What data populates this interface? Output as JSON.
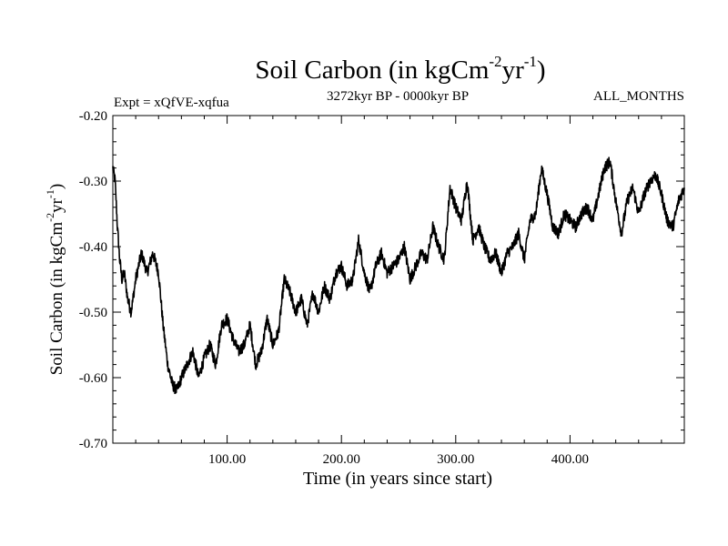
{
  "chart_data": {
    "type": "line",
    "title": {
      "main": "Soil Carbon (in kgCm",
      "sup1": "-2",
      "mid": "yr",
      "sup2": "-1",
      "end": ")"
    },
    "subtitle_left": "Expt = xQfVE-xqfua",
    "subtitle_center": "3272kyr BP - 0000kyr BP",
    "subtitle_right": "ALL_MONTHS",
    "xlabel": "Time (in years since start)",
    "ylabel": {
      "main": "Soil Carbon (in kgCm",
      "sup1": "-2",
      "mid": "yr",
      "sup2": "-1",
      "end": ")"
    },
    "xlim": [
      0,
      500
    ],
    "ylim": [
      -0.7,
      -0.2
    ],
    "xticks": [
      {
        "value": 100,
        "label": "100.00"
      },
      {
        "value": 200,
        "label": "200.00"
      },
      {
        "value": 300,
        "label": "300.00"
      },
      {
        "value": 400,
        "label": "400.00"
      }
    ],
    "yticks": [
      {
        "value": -0.2,
        "label": "-0.20"
      },
      {
        "value": -0.3,
        "label": "-0.30"
      },
      {
        "value": -0.4,
        "label": "-0.40"
      },
      {
        "value": -0.5,
        "label": "-0.50"
      },
      {
        "value": -0.6,
        "label": "-0.60"
      },
      {
        "value": -0.7,
        "label": "-0.70"
      }
    ],
    "series": [
      {
        "name": "Soil Carbon",
        "color": "#000000",
        "x": [
          0,
          2,
          4,
          6,
          8,
          10,
          13,
          16,
          20,
          25,
          30,
          35,
          40,
          44,
          48,
          52,
          56,
          60,
          65,
          70,
          75,
          80,
          85,
          90,
          95,
          100,
          105,
          110,
          115,
          120,
          125,
          130,
          135,
          140,
          145,
          150,
          155,
          160,
          165,
          170,
          175,
          180,
          185,
          190,
          195,
          200,
          205,
          210,
          215,
          220,
          225,
          230,
          235,
          240,
          245,
          250,
          255,
          260,
          265,
          270,
          275,
          280,
          285,
          290,
          295,
          300,
          305,
          310,
          315,
          320,
          325,
          330,
          335,
          340,
          345,
          350,
          355,
          360,
          365,
          370,
          375,
          380,
          385,
          390,
          395,
          400,
          405,
          410,
          415,
          420,
          425,
          430,
          435,
          440,
          445,
          450,
          455,
          460,
          465,
          470,
          475,
          480,
          485,
          490,
          495,
          500
        ],
        "y": [
          -0.28,
          -0.3,
          -0.37,
          -0.42,
          -0.45,
          -0.44,
          -0.48,
          -0.5,
          -0.45,
          -0.41,
          -0.44,
          -0.41,
          -0.44,
          -0.52,
          -0.58,
          -0.61,
          -0.62,
          -0.6,
          -0.58,
          -0.56,
          -0.6,
          -0.57,
          -0.55,
          -0.58,
          -0.52,
          -0.51,
          -0.54,
          -0.56,
          -0.55,
          -0.52,
          -0.58,
          -0.56,
          -0.51,
          -0.55,
          -0.53,
          -0.45,
          -0.47,
          -0.5,
          -0.48,
          -0.52,
          -0.47,
          -0.5,
          -0.46,
          -0.48,
          -0.44,
          -0.43,
          -0.46,
          -0.45,
          -0.39,
          -0.44,
          -0.47,
          -0.43,
          -0.41,
          -0.44,
          -0.43,
          -0.42,
          -0.4,
          -0.45,
          -0.43,
          -0.41,
          -0.42,
          -0.37,
          -0.4,
          -0.42,
          -0.31,
          -0.34,
          -0.36,
          -0.3,
          -0.39,
          -0.37,
          -0.4,
          -0.42,
          -0.41,
          -0.44,
          -0.41,
          -0.4,
          -0.38,
          -0.42,
          -0.36,
          -0.35,
          -0.28,
          -0.32,
          -0.37,
          -0.38,
          -0.35,
          -0.36,
          -0.37,
          -0.35,
          -0.34,
          -0.36,
          -0.32,
          -0.28,
          -0.27,
          -0.33,
          -0.38,
          -0.33,
          -0.31,
          -0.35,
          -0.32,
          -0.3,
          -0.29,
          -0.32,
          -0.36,
          -0.37,
          -0.33,
          -0.31
        ]
      }
    ]
  }
}
